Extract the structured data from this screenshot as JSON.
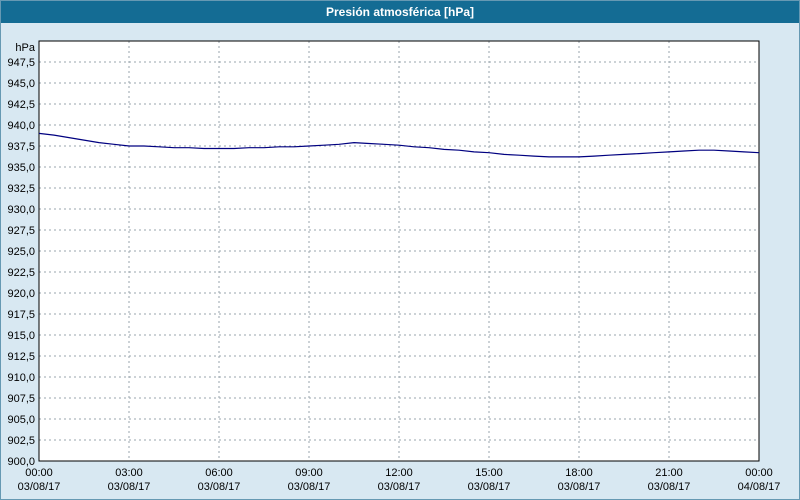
{
  "window": {
    "colors": {
      "titlebar_bg": "#146c94",
      "titlebar_text": "#ffffff",
      "page_bg": "#d8e8f2",
      "plot_bg": "#ffffff",
      "grid": "#9aa5ad",
      "axis": "#000000",
      "line": "#000080",
      "label": "#000000"
    }
  },
  "chart_data": {
    "type": "line",
    "title": "Presión atmosférica [hPa]",
    "ylabel_unit": "hPa",
    "ylim": [
      900,
      950
    ],
    "grid": true,
    "legend": "none",
    "y_ticks": [
      947.5,
      945.0,
      942.5,
      940.0,
      937.5,
      935.0,
      932.5,
      930.0,
      927.5,
      925.0,
      922.5,
      920.0,
      917.5,
      915.0,
      912.5,
      910.0,
      907.5,
      905.0,
      902.5,
      900.0
    ],
    "y_tick_labels": [
      "947,5",
      "945,0",
      "942,5",
      "940,0",
      "937,5",
      "935,0",
      "932,5",
      "930,0",
      "927,5",
      "925,0",
      "922,5",
      "920,0",
      "917,5",
      "915,0",
      "912,5",
      "910,0",
      "907,5",
      "905,0",
      "902,5",
      "900,0"
    ],
    "x_hours_range": [
      0,
      24
    ],
    "x_ticks": [
      {
        "hour": 0,
        "time": "00:00",
        "date": "03/08/17"
      },
      {
        "hour": 3,
        "time": "03:00",
        "date": "03/08/17"
      },
      {
        "hour": 6,
        "time": "06:00",
        "date": "03/08/17"
      },
      {
        "hour": 9,
        "time": "09:00",
        "date": "03/08/17"
      },
      {
        "hour": 12,
        "time": "12:00",
        "date": "03/08/17"
      },
      {
        "hour": 15,
        "time": "15:00",
        "date": "03/08/17"
      },
      {
        "hour": 18,
        "time": "18:00",
        "date": "03/08/17"
      },
      {
        "hour": 21,
        "time": "21:00",
        "date": "03/08/17"
      },
      {
        "hour": 24,
        "time": "00:00",
        "date": "04/08/17"
      }
    ],
    "series": [
      {
        "name": "Presión atmosférica",
        "color": "#000080",
        "points": [
          [
            0,
            939.0
          ],
          [
            0.5,
            938.8
          ],
          [
            1,
            938.5
          ],
          [
            1.5,
            938.2
          ],
          [
            2,
            937.9
          ],
          [
            2.5,
            937.7
          ],
          [
            3,
            937.5
          ],
          [
            3.5,
            937.5
          ],
          [
            4,
            937.4
          ],
          [
            4.5,
            937.3
          ],
          [
            5,
            937.3
          ],
          [
            5.5,
            937.2
          ],
          [
            6,
            937.2
          ],
          [
            6.5,
            937.2
          ],
          [
            7,
            937.3
          ],
          [
            7.5,
            937.3
          ],
          [
            8,
            937.4
          ],
          [
            8.5,
            937.4
          ],
          [
            9,
            937.5
          ],
          [
            9.5,
            937.6
          ],
          [
            10,
            937.7
          ],
          [
            10.5,
            937.9
          ],
          [
            11,
            937.8
          ],
          [
            11.5,
            937.7
          ],
          [
            12,
            937.6
          ],
          [
            12.5,
            937.4
          ],
          [
            13,
            937.3
          ],
          [
            13.5,
            937.1
          ],
          [
            14,
            937.0
          ],
          [
            14.5,
            936.8
          ],
          [
            15,
            936.7
          ],
          [
            15.5,
            936.5
          ],
          [
            16,
            936.4
          ],
          [
            16.5,
            936.3
          ],
          [
            17,
            936.2
          ],
          [
            17.5,
            936.2
          ],
          [
            18,
            936.2
          ],
          [
            18.5,
            936.3
          ],
          [
            19,
            936.4
          ],
          [
            19.5,
            936.5
          ],
          [
            20,
            936.6
          ],
          [
            20.5,
            936.7
          ],
          [
            21,
            936.8
          ],
          [
            21.5,
            936.9
          ],
          [
            22,
            937.0
          ],
          [
            22.5,
            937.0
          ],
          [
            23,
            936.9
          ],
          [
            23.5,
            936.8
          ],
          [
            24,
            936.7
          ]
        ]
      }
    ]
  }
}
